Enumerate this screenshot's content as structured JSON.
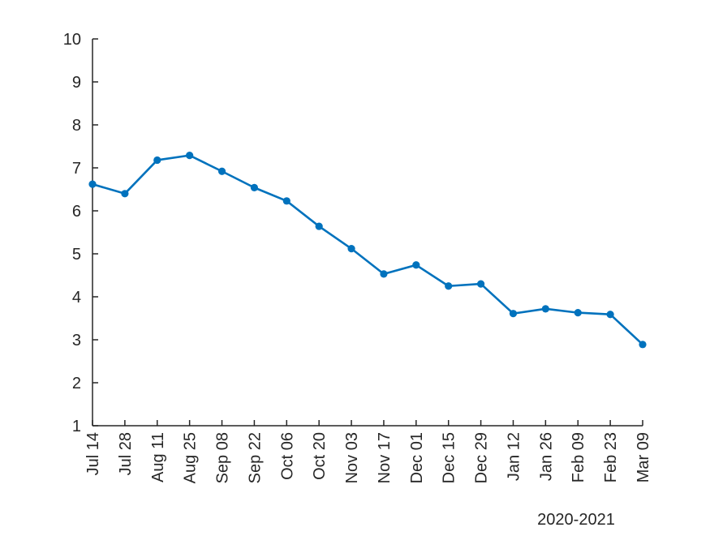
{
  "chart_data": {
    "type": "line",
    "title": "",
    "xlabel": "2020-2021",
    "ylabel": "",
    "ylim": [
      1,
      10
    ],
    "yticks": [
      1,
      2,
      3,
      4,
      5,
      6,
      7,
      8,
      9,
      10
    ],
    "grid": false,
    "categories": [
      "Jul 14",
      "Jul 28",
      "Aug 11",
      "Aug 25",
      "Sep 08",
      "Sep 22",
      "Oct 06",
      "Oct 20",
      "Nov 03",
      "Nov 17",
      "Dec 01",
      "Dec 15",
      "Dec 29",
      "Jan 12",
      "Jan 26",
      "Feb 09",
      "Feb 23",
      "Mar 09"
    ],
    "series": [
      {
        "values": [
          6.62,
          6.4,
          7.18,
          7.29,
          6.92,
          6.54,
          6.23,
          5.64,
          5.12,
          4.53,
          4.74,
          4.25,
          4.3,
          3.61,
          3.72,
          3.63,
          3.59,
          2.89
        ],
        "color": "#0072BD",
        "marker": "circle"
      }
    ],
    "axis_color": "#262626"
  }
}
